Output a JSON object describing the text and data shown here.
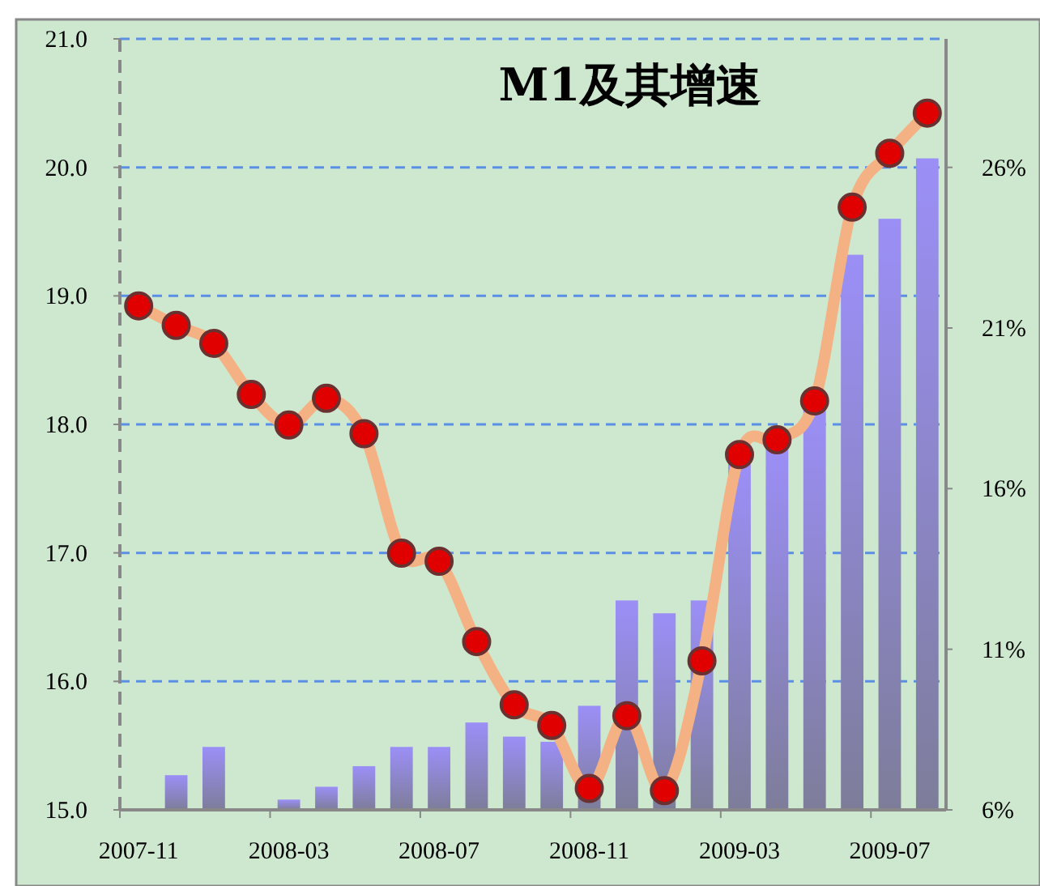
{
  "chart_data": {
    "type": "bar",
    "title": "M1及其增速",
    "categories": [
      "2007-11",
      null,
      null,
      null,
      "2008-03",
      null,
      null,
      null,
      "2008-07",
      null,
      null,
      null,
      "2008-11",
      null,
      null,
      null,
      "2009-03",
      null,
      null,
      null,
      "2009-07",
      null
    ],
    "series": [
      {
        "color": "#9b8ff7",
        "values": [
          15.0,
          15.27,
          15.49,
          null,
          15.08,
          15.18,
          15.34,
          15.49,
          15.49,
          15.68,
          15.57,
          15.53,
          15.81,
          16.63,
          16.53,
          16.63,
          17.69,
          17.84,
          18.15,
          19.32,
          19.6,
          20.07
        ]
      },
      {
        "type": "line",
        "axis": "y2",
        "color": "#f4b183",
        "values": [
          21.69,
          21.08,
          20.52,
          18.93,
          17.98,
          18.81,
          17.71,
          13.99,
          13.74,
          11.24,
          9.27,
          8.63,
          6.67,
          8.93,
          6.6,
          10.64,
          17.06,
          17.52,
          18.73,
          24.76,
          26.44,
          27.69
        ]
      }
    ],
    "ylim": [
      15,
      21
    ],
    "yticks": [
      {
        "value": 15,
        "label": "15.0"
      },
      {
        "value": 16,
        "label": "16.0"
      },
      {
        "value": 17,
        "label": "17.0"
      },
      {
        "value": 18,
        "label": "18.0"
      },
      {
        "value": 19,
        "label": "19.0"
      },
      {
        "value": 20,
        "label": "20.0"
      },
      {
        "value": 21,
        "label": "21.0"
      }
    ],
    "y2lim": [
      6,
      30
    ],
    "y2ticks": [
      {
        "value": 6,
        "label": "6%"
      },
      {
        "value": 11,
        "label": "11%"
      },
      {
        "value": 16,
        "label": "16%"
      },
      {
        "value": 21,
        "label": "21%"
      },
      {
        "value": 26,
        "label": "26%"
      }
    ],
    "grid": "y",
    "marker": "circle",
    "line_style": "solid"
  }
}
